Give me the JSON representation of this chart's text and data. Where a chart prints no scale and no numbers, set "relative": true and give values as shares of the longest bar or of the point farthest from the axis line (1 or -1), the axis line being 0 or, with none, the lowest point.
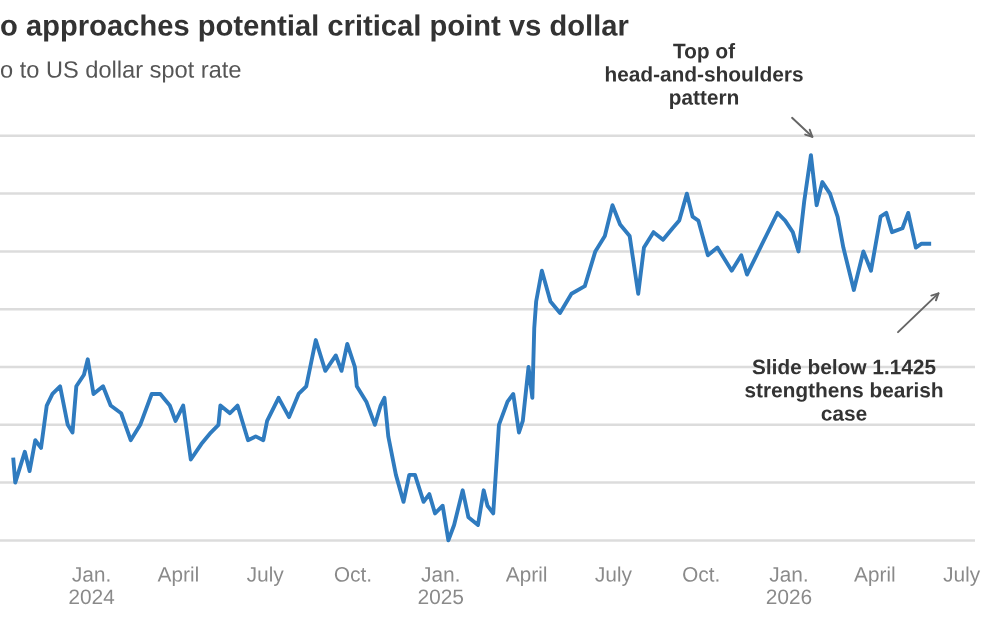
{
  "chart_data": {
    "type": "line",
    "title": "o approaches potential critical point vs dollar",
    "subtitle": "o to US dollar spot rate",
    "relative": true,
    "grid": "y",
    "marker": "none",
    "line_style": "solid",
    "xlim": [
      "2023-09-27",
      "2026-07-15"
    ],
    "xticks": [
      {
        "value": "2024-01-01",
        "label": "Jan.\n2024"
      },
      {
        "value": "2024-04-01",
        "label": "April"
      },
      {
        "value": "2024-07-01",
        "label": "July"
      },
      {
        "value": "2024-10-01",
        "label": "Oct."
      },
      {
        "value": "2025-01-01",
        "label": "Jan.\n2025"
      },
      {
        "value": "2025-04-01",
        "label": "April"
      },
      {
        "value": "2025-07-01",
        "label": "July"
      },
      {
        "value": "2025-10-01",
        "label": "Oct."
      },
      {
        "value": "2026-01-01",
        "label": "Jan.\n2026"
      },
      {
        "value": "2026-04-01",
        "label": "April"
      },
      {
        "value": "2026-07-01",
        "label": "July"
      }
    ],
    "annotations": [
      "Top of head-and-shoulders pattern",
      "Slide below 1.1425 strengthens bearish case"
    ],
    "series": [
      {
        "color": "#2f7bbf",
        "x": [
          "2023-10-11",
          "2023-10-13",
          "2023-10-23",
          "2023-10-28",
          "2023-11-03",
          "2023-11-09",
          "2023-11-15",
          "2023-11-21",
          "2023-11-29",
          "2023-12-07",
          "2023-12-12",
          "2023-12-16",
          "2023-12-24",
          "2023-12-28",
          "2024-01-03",
          "2024-01-13",
          "2024-01-21",
          "2024-02-01",
          "2024-02-11",
          "2024-02-21",
          "2024-03-04",
          "2024-03-13",
          "2024-03-23",
          "2024-03-29",
          "2024-04-06",
          "2024-04-14",
          "2024-04-25",
          "2024-05-05",
          "2024-05-13",
          "2024-05-15",
          "2024-05-25",
          "2024-06-02",
          "2024-06-13",
          "2024-06-21",
          "2024-06-29",
          "2024-07-03",
          "2024-07-15",
          "2024-07-26",
          "2024-08-05",
          "2024-08-13",
          "2024-08-23",
          "2024-09-02",
          "2024-09-13",
          "2024-09-19",
          "2024-09-25",
          "2024-10-03",
          "2024-10-05",
          "2024-10-15",
          "2024-10-24",
          "2024-10-30",
          "2024-11-03",
          "2024-11-07",
          "2024-11-15",
          "2024-11-23",
          "2024-11-29",
          "2024-12-05",
          "2024-12-14",
          "2024-12-20",
          "2024-12-26",
          "2025-01-03",
          "2025-01-09",
          "2025-01-15",
          "2025-01-24",
          "2025-01-30",
          "2025-02-09",
          "2025-02-15",
          "2025-02-19",
          "2025-02-25",
          "2025-03-03",
          "2025-03-12",
          "2025-03-18",
          "2025-03-24",
          "2025-03-28",
          "2025-04-03",
          "2025-04-07",
          "2025-04-09",
          "2025-04-11",
          "2025-04-17",
          "2025-04-26",
          "2025-05-06",
          "2025-05-18",
          "2025-06-01",
          "2025-06-12",
          "2025-06-22",
          "2025-06-30",
          "2025-07-08",
          "2025-07-18",
          "2025-07-27",
          "2025-08-02",
          "2025-08-12",
          "2025-08-22",
          "2025-09-01",
          "2025-09-08",
          "2025-09-16",
          "2025-09-22",
          "2025-09-28",
          "2025-10-08",
          "2025-10-18",
          "2025-11-02",
          "2025-11-12",
          "2025-11-18",
          "2025-11-28",
          "2025-12-08",
          "2025-12-20",
          "2025-12-28",
          "2026-01-05",
          "2026-01-11",
          "2026-01-17",
          "2026-01-24",
          "2026-01-30",
          "2026-02-05",
          "2026-02-13",
          "2026-02-21",
          "2026-02-27",
          "2026-03-10",
          "2026-03-20",
          "2026-03-28",
          "2026-04-07",
          "2026-04-13",
          "2026-04-19",
          "2026-04-30",
          "2026-05-06",
          "2026-05-14",
          "2026-05-20",
          "2026-05-28"
        ],
        "values": [
          0.21,
          0.15,
          0.23,
          0.18,
          0.26,
          0.24,
          0.35,
          0.38,
          0.4,
          0.3,
          0.28,
          0.4,
          0.43,
          0.47,
          0.38,
          0.4,
          0.35,
          0.33,
          0.26,
          0.3,
          0.38,
          0.38,
          0.35,
          0.31,
          0.35,
          0.21,
          0.25,
          0.28,
          0.3,
          0.35,
          0.33,
          0.35,
          0.26,
          0.27,
          0.26,
          0.31,
          0.37,
          0.32,
          0.38,
          0.4,
          0.52,
          0.44,
          0.48,
          0.44,
          0.51,
          0.45,
          0.4,
          0.36,
          0.3,
          0.35,
          0.37,
          0.27,
          0.17,
          0.1,
          0.17,
          0.17,
          0.1,
          0.12,
          0.07,
          0.09,
          0.0,
          0.04,
          0.13,
          0.06,
          0.04,
          0.13,
          0.09,
          0.07,
          0.3,
          0.36,
          0.38,
          0.28,
          0.31,
          0.45,
          0.37,
          0.55,
          0.62,
          0.7,
          0.62,
          0.59,
          0.64,
          0.66,
          0.75,
          0.79,
          0.87,
          0.82,
          0.79,
          0.64,
          0.76,
          0.8,
          0.78,
          0.81,
          0.83,
          0.9,
          0.84,
          0.83,
          0.74,
          0.76,
          0.7,
          0.74,
          0.69,
          0.74,
          0.79,
          0.85,
          0.83,
          0.8,
          0.75,
          0.88,
          1.0,
          0.87,
          0.93,
          0.9,
          0.84,
          0.76,
          0.65,
          0.75,
          0.7,
          0.84,
          0.85,
          0.8,
          0.81,
          0.85,
          0.76,
          0.77,
          0.77
        ]
      }
    ]
  }
}
